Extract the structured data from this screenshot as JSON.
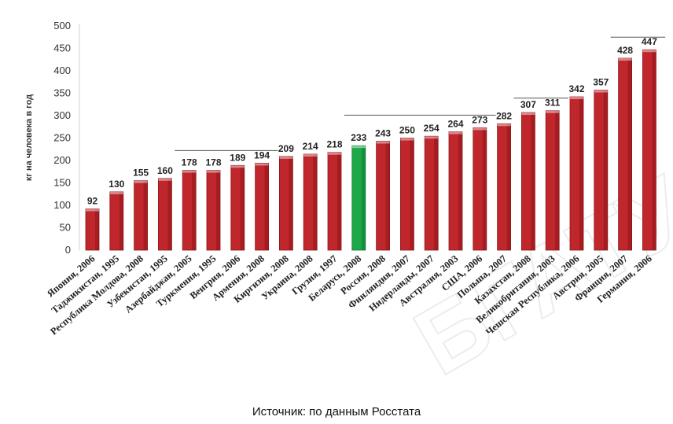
{
  "chart_data": {
    "type": "bar",
    "ylabel": "кг на человека в год",
    "ylim": [
      0,
      500
    ],
    "yticks": [
      0,
      50,
      100,
      150,
      200,
      250,
      300,
      350,
      400,
      450,
      500
    ],
    "grid": false,
    "legend": "none",
    "categories": [
      "Япония, 2006",
      "Таджикистан, 1995",
      "Республика Молдова, 2008",
      "Узбекистан, 1995",
      "Азербайджан, 2005",
      "Туркмения, 1995",
      "Венгрия, 2006",
      "Армения, 2008",
      "Киргизия, 2008",
      "Украина, 2008",
      "Грузия, 1997",
      "Беларусь, 2008",
      "Россия, 2008",
      "Финляндия, 2007",
      "Нидерланды, 2007",
      "Австралия, 2003",
      "США, 2006",
      "Польша, 2007",
      "Казахстан, 2008",
      "Великобритания, 2003",
      "Чешская Республика, 2006",
      "Австрия, 2005",
      "Франция, 2007",
      "Германия, 2006"
    ],
    "values": [
      92,
      130,
      155,
      160,
      178,
      178,
      189,
      194,
      209,
      214,
      218,
      233,
      243,
      250,
      254,
      264,
      273,
      282,
      307,
      311,
      342,
      357,
      428,
      447
    ],
    "highlight_index": 11,
    "colors": {
      "bar": "#c0272d",
      "bar_dark": "#8e1418",
      "highlight": "#1ea84a",
      "highlight_dark": "#0e7a30"
    },
    "group_markers": [
      {
        "from": 4,
        "to": 7
      },
      {
        "from": 11,
        "to": 16
      },
      {
        "from": 18,
        "to": 19
      },
      {
        "from": 22,
        "to": 23
      }
    ]
  },
  "source": "Источник: по данным  Росстата",
  "watermark": "БГАТУ"
}
